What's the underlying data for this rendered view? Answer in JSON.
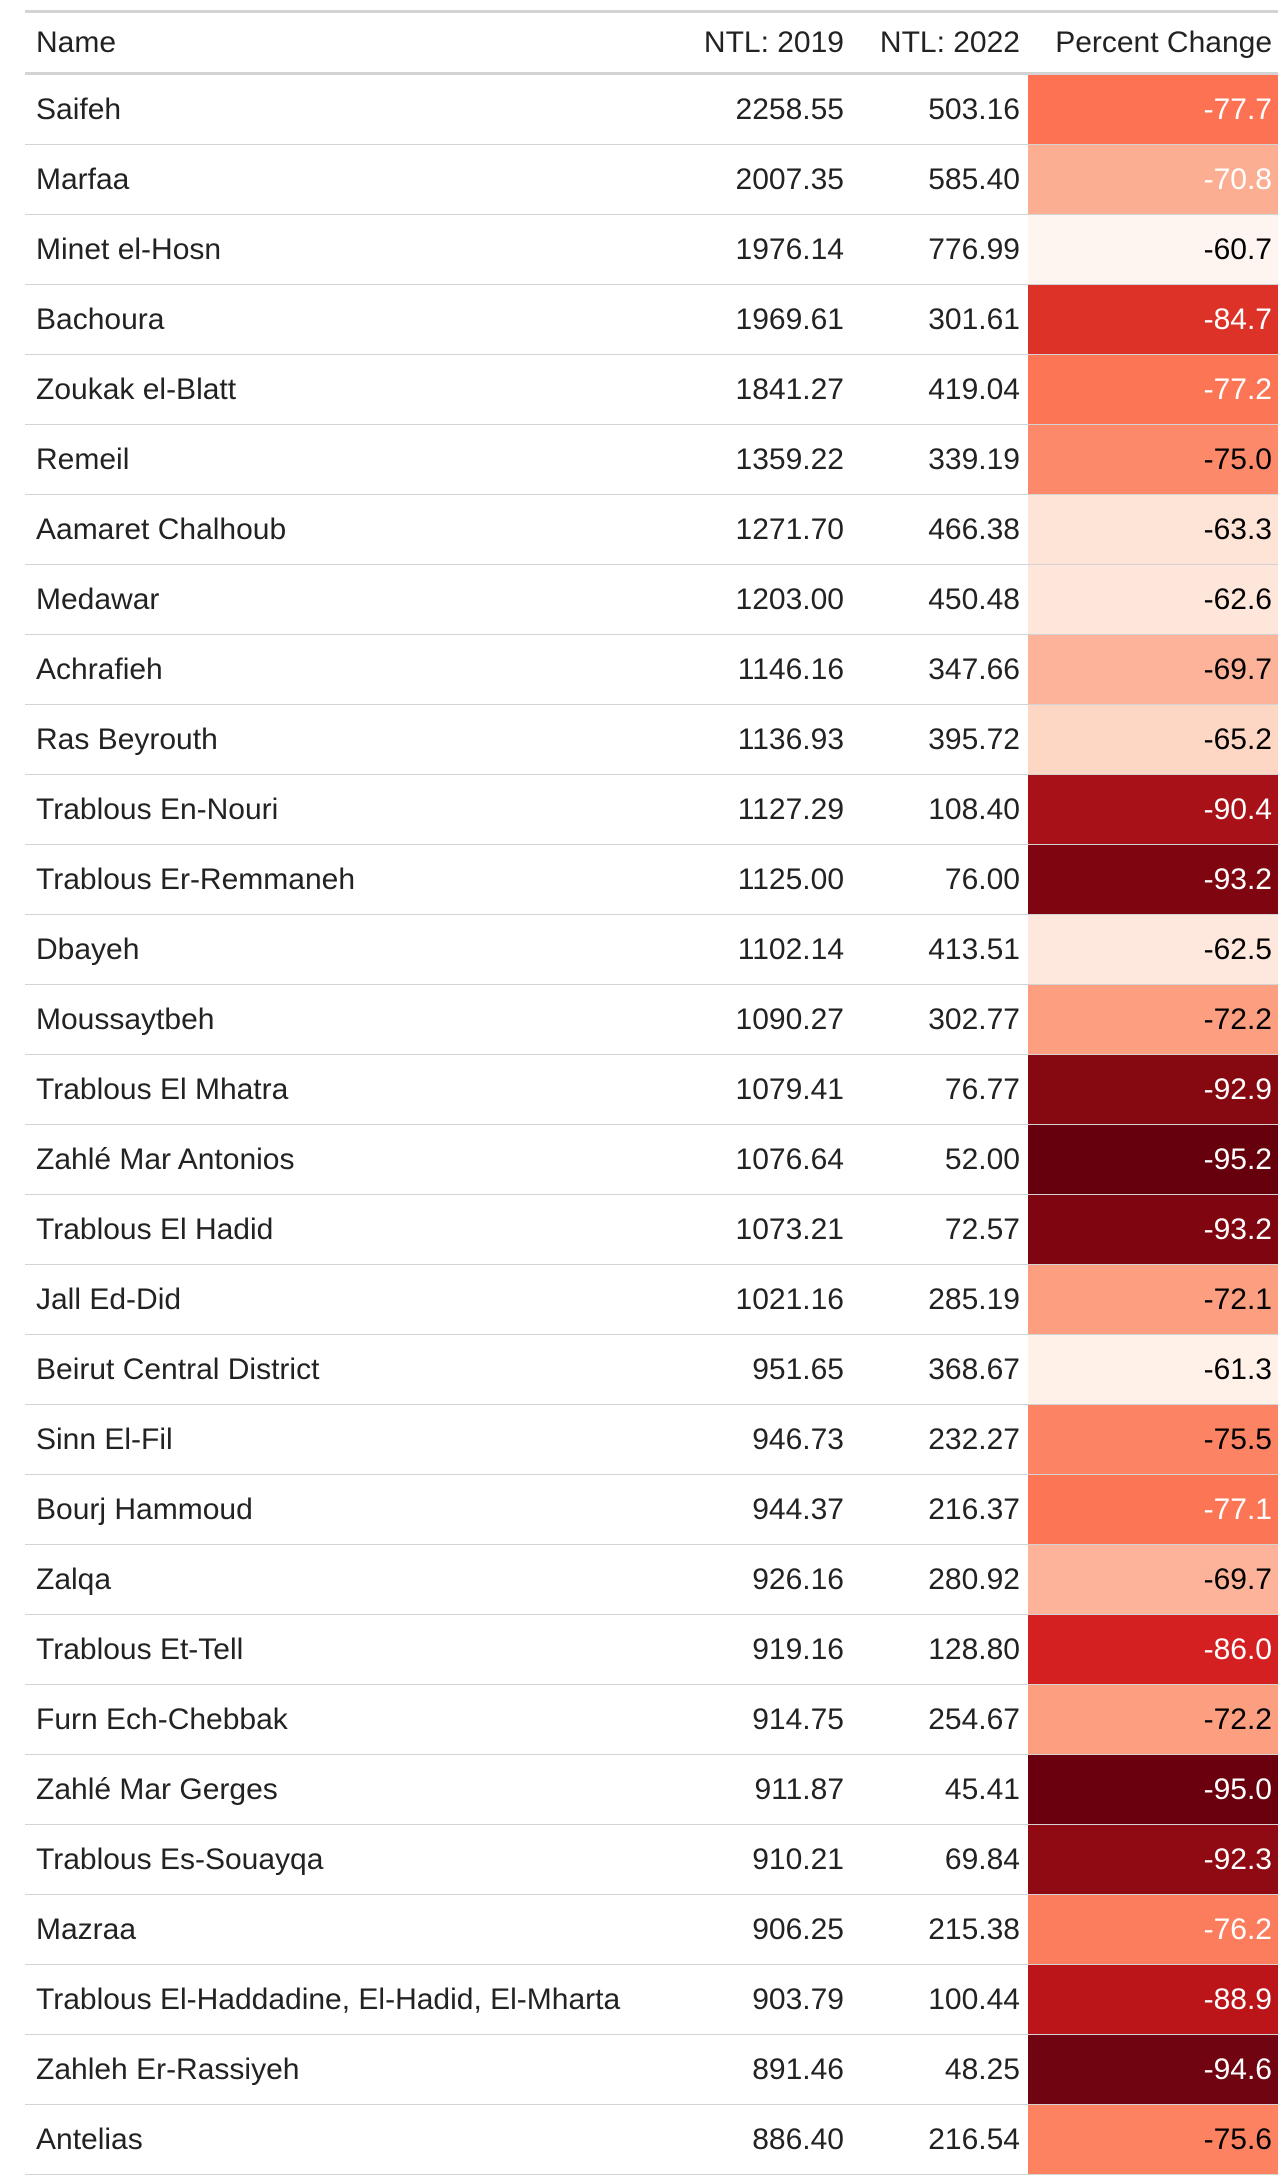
{
  "table": {
    "header": [
      "Name",
      "NTL: 2019",
      "NTL: 2022",
      "Percent Change"
    ],
    "rows": [
      {
        "name": "Saifeh",
        "ntl_2019": "2258.55",
        "ntl_2022": "503.16",
        "pct": "-77.7",
        "color": "#fc7252",
        "text_color": "#ffffff"
      },
      {
        "name": "Marfaa",
        "ntl_2019": "2007.35",
        "ntl_2022": "585.40",
        "pct": "-70.8",
        "color": "#fcae92",
        "text_color": "#ffffff"
      },
      {
        "name": "Minet el-Hosn",
        "ntl_2019": "1976.14",
        "ntl_2022": "776.99",
        "pct": "-60.7",
        "color": "#fff5f0",
        "text_color": "#000000"
      },
      {
        "name": "Bachoura",
        "ntl_2019": "1969.61",
        "ntl_2022": "301.61",
        "pct": "-84.7",
        "color": "#dc3228",
        "text_color": "#ffffff"
      },
      {
        "name": "Zoukak el-Blatt",
        "ntl_2019": "1841.27",
        "ntl_2022": "419.04",
        "pct": "-77.2",
        "color": "#fc7656",
        "text_color": "#ffffff"
      },
      {
        "name": "Remeil",
        "ntl_2019": "1359.22",
        "ntl_2022": "339.19",
        "pct": "-75.0",
        "color": "#fc8a6a",
        "text_color": "#000000"
      },
      {
        "name": "Aamaret Chalhoub",
        "ntl_2019": "1271.70",
        "ntl_2022": "466.38",
        "pct": "-63.3",
        "color": "#fee3d7",
        "text_color": "#000000"
      },
      {
        "name": "Medawar",
        "ntl_2019": "1203.00",
        "ntl_2022": "450.48",
        "pct": "-62.6",
        "color": "#fee6da",
        "text_color": "#000000"
      },
      {
        "name": "Achrafieh",
        "ntl_2019": "1146.16",
        "ntl_2022": "347.66",
        "pct": "-69.7",
        "color": "#fcb399",
        "text_color": "#000000"
      },
      {
        "name": "Ras Beyrouth",
        "ntl_2019": "1136.93",
        "ntl_2022": "395.72",
        "pct": "-65.2",
        "color": "#fdd6c4",
        "text_color": "#000000"
      },
      {
        "name": "Trablous En-Nouri",
        "ntl_2019": "1127.29",
        "ntl_2022": "108.40",
        "pct": "-90.4",
        "color": "#a91119",
        "text_color": "#ffffff"
      },
      {
        "name": "Trablous Er-Remmaneh",
        "ntl_2019": "1125.00",
        "ntl_2022": "76.00",
        "pct": "-93.2",
        "color": "#7f0610",
        "text_color": "#ffffff"
      },
      {
        "name": "Dbayeh",
        "ntl_2019": "1102.14",
        "ntl_2022": "413.51",
        "pct": "-62.5",
        "color": "#fee7dc",
        "text_color": "#000000"
      },
      {
        "name": "Moussaytbeh",
        "ntl_2019": "1090.27",
        "ntl_2022": "302.77",
        "pct": "-72.2",
        "color": "#fc9e80",
        "text_color": "#000000"
      },
      {
        "name": "Trablous El Mhatra",
        "ntl_2019": "1079.41",
        "ntl_2022": "76.77",
        "pct": "-92.9",
        "color": "#860811",
        "text_color": "#ffffff"
      },
      {
        "name": "Zahlé Mar Antonios",
        "ntl_2019": "1076.64",
        "ntl_2022": "52.00",
        "pct": "-95.2",
        "color": "#67000d",
        "text_color": "#ffffff"
      },
      {
        "name": "Trablous El Hadid",
        "ntl_2019": "1073.21",
        "ntl_2022": "72.57",
        "pct": "-93.2",
        "color": "#7f0610",
        "text_color": "#ffffff"
      },
      {
        "name": "Jall Ed-Did",
        "ntl_2019": "1021.16",
        "ntl_2022": "285.19",
        "pct": "-72.1",
        "color": "#fc9e80",
        "text_color": "#000000"
      },
      {
        "name": "Beirut Central District",
        "ntl_2019": "951.65",
        "ntl_2022": "368.67",
        "pct": "-61.3",
        "color": "#fff0e8",
        "text_color": "#000000"
      },
      {
        "name": "Sinn El-Fil",
        "ntl_2019": "946.73",
        "ntl_2022": "232.27",
        "pct": "-75.5",
        "color": "#fc8363",
        "text_color": "#000000"
      },
      {
        "name": "Bourj Hammoud",
        "ntl_2019": "944.37",
        "ntl_2022": "216.37",
        "pct": "-77.1",
        "color": "#fc7656",
        "text_color": "#ffffff"
      },
      {
        "name": "Zalqa",
        "ntl_2019": "926.16",
        "ntl_2022": "280.92",
        "pct": "-69.7",
        "color": "#fcb399",
        "text_color": "#000000"
      },
      {
        "name": "Trablous Et-Tell",
        "ntl_2019": "919.16",
        "ntl_2022": "128.80",
        "pct": "-86.0",
        "color": "#d42020",
        "text_color": "#ffffff"
      },
      {
        "name": "Furn Ech-Chebbak",
        "ntl_2019": "914.75",
        "ntl_2022": "254.67",
        "pct": "-72.2",
        "color": "#fc9e80",
        "text_color": "#000000"
      },
      {
        "name": "Zahlé Mar Gerges",
        "ntl_2019": "911.87",
        "ntl_2022": "45.41",
        "pct": "-95.0",
        "color": "#6a000d",
        "text_color": "#ffffff"
      },
      {
        "name": "Trablous Es-Souayqa",
        "ntl_2019": "910.21",
        "ntl_2022": "69.84",
        "pct": "-92.3",
        "color": "#8f0a12",
        "text_color": "#ffffff"
      },
      {
        "name": "Mazraa",
        "ntl_2019": "906.25",
        "ntl_2022": "215.38",
        "pct": "-76.2",
        "color": "#fc7d5e",
        "text_color": "#ffffff"
      },
      {
        "name": "Trablous El-Haddadine, El-Hadid, El-Mharta",
        "ntl_2019": "903.79",
        "ntl_2022": "100.44",
        "pct": "-88.9",
        "color": "#bb1419",
        "text_color": "#ffffff"
      },
      {
        "name": "Zahleh Er-Rassiyeh",
        "ntl_2019": "891.46",
        "ntl_2022": "48.25",
        "pct": "-94.6",
        "color": "#700410",
        "text_color": "#ffffff"
      },
      {
        "name": "Antelias",
        "ntl_2019": "886.40",
        "ntl_2022": "216.54",
        "pct": "-75.6",
        "color": "#fc8262",
        "text_color": "#000000"
      }
    ]
  }
}
